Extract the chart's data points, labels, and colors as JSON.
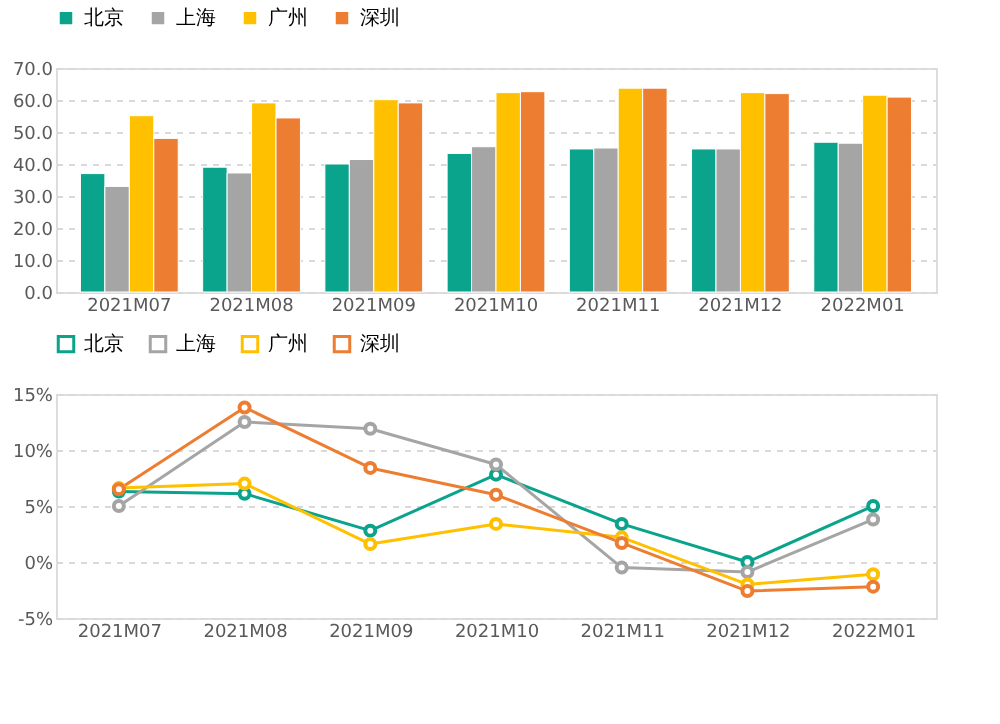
{
  "chart_data": [
    {
      "type": "bar",
      "categories": [
        "2021M07",
        "2021M08",
        "2021M09",
        "2021M10",
        "2021M11",
        "2021M12",
        "2022M01"
      ],
      "series": [
        {
          "name": "北京",
          "color": "#0aa38b",
          "values": [
            37.0,
            39.0,
            40.0,
            43.3,
            44.7,
            44.7,
            46.8
          ]
        },
        {
          "name": "上海",
          "color": "#a5a5a5",
          "values": [
            33.0,
            37.2,
            41.4,
            45.4,
            45.0,
            44.7,
            46.5
          ]
        },
        {
          "name": "广州",
          "color": "#ffc000",
          "values": [
            55.1,
            59.1,
            60.1,
            62.3,
            63.7,
            62.3,
            61.5
          ]
        },
        {
          "name": "深圳",
          "color": "#ed7d31",
          "values": [
            48.0,
            54.4,
            59.1,
            62.6,
            63.7,
            62.0,
            60.9
          ]
        }
      ],
      "ylim": [
        0,
        70
      ],
      "yticks": [
        {
          "value": 0,
          "label": "0.0"
        },
        {
          "value": 10,
          "label": "10.0"
        },
        {
          "value": 20,
          "label": "20.0"
        },
        {
          "value": 30,
          "label": "30.0"
        },
        {
          "value": 40,
          "label": "40.0"
        },
        {
          "value": 50,
          "label": "50.0"
        },
        {
          "value": 60,
          "label": "60.0"
        },
        {
          "value": 70,
          "label": "70.0"
        }
      ],
      "grid": "y",
      "legend": "top"
    },
    {
      "type": "line",
      "categories": [
        "2021M07",
        "2021M08",
        "2021M09",
        "2021M10",
        "2021M11",
        "2021M12",
        "2022M01"
      ],
      "series": [
        {
          "name": "北京",
          "color": "#0aa38b",
          "values": [
            6.3,
            6.1,
            2.8,
            7.8,
            3.4,
            0.0,
            5.0
          ]
        },
        {
          "name": "上海",
          "color": "#a5a5a5",
          "values": [
            5.0,
            12.5,
            11.9,
            8.7,
            -0.5,
            -0.9,
            3.8
          ]
        },
        {
          "name": "广州",
          "color": "#ffc000",
          "values": [
            6.6,
            7.0,
            1.6,
            3.4,
            2.2,
            -2.0,
            -1.1
          ]
        },
        {
          "name": "深圳",
          "color": "#ed7d31",
          "values": [
            6.5,
            13.8,
            8.4,
            6.0,
            1.7,
            -2.6,
            -2.2
          ]
        }
      ],
      "ylim": [
        -5,
        15
      ],
      "yticks": [
        {
          "value": -5,
          "label": "-5%"
        },
        {
          "value": 0,
          "label": "0%"
        },
        {
          "value": 5,
          "label": "5%"
        },
        {
          "value": 10,
          "label": "10%"
        },
        {
          "value": 15,
          "label": "15%"
        }
      ],
      "grid": "y",
      "legend": "top",
      "marker": "circle"
    }
  ]
}
